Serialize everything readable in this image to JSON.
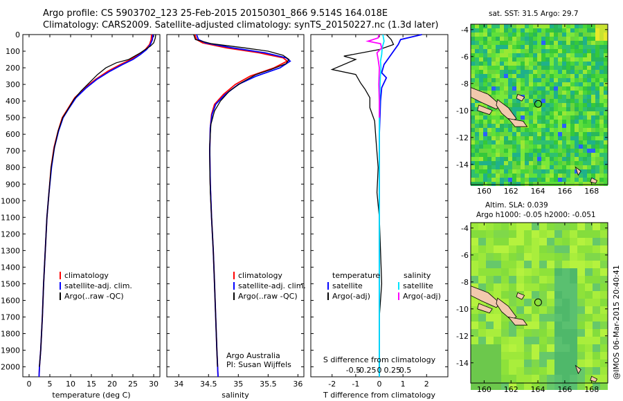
{
  "header": {
    "title1": "Argo profile: CS 5903702_123 25-Feb-2015 20150301_866 9.514S 164.018E",
    "title2": "Climatology: CARS2009. Satellite-adjusted climatology: synTS_20150227.nc (1.3d later)"
  },
  "side_titles": {
    "sst": "sat. SST: 31.5 Argo: 29.7",
    "sla1": "Altim. SLA: 0.039",
    "sla2": "Argo h1000: -0.05 h2000: -0.051"
  },
  "watermark": "@IMOS 06-Mar-2015 20:40:41",
  "colors": {
    "clim": "#ff0000",
    "sat": "#0000ff",
    "argo": "#000000",
    "salt_sat": "#00e5ff",
    "salt_argo": "#ff00ff"
  },
  "depth_axis": {
    "ticks": [
      0,
      100,
      200,
      300,
      400,
      500,
      600,
      700,
      800,
      900,
      1000,
      1100,
      1200,
      1300,
      1400,
      1500,
      1600,
      1700,
      1800,
      1900,
      2000
    ],
    "ylim": [
      0,
      2060
    ]
  },
  "chart_data": [
    {
      "type": "line",
      "name": "temperature",
      "xlabel": "temperature (deg C)",
      "xlim": [
        -1.5,
        31.5
      ],
      "xticks": [
        0,
        5,
        10,
        15,
        20,
        25,
        30
      ],
      "legend": [
        "climatology",
        "satellite-adj. clim.",
        "Argo(..raw -QC)"
      ],
      "series": [
        {
          "name": "climatology",
          "color": "clim",
          "points": [
            [
              29.5,
              0
            ],
            [
              29.4,
              30
            ],
            [
              29.0,
              60
            ],
            [
              28.0,
              90
            ],
            [
              26.5,
              120
            ],
            [
              24.5,
              150
            ],
            [
              22.0,
              180
            ],
            [
              19.0,
              220
            ],
            [
              16.0,
              270
            ],
            [
              13.5,
              320
            ],
            [
              11.0,
              380
            ],
            [
              9.5,
              440
            ],
            [
              8.0,
              500
            ],
            [
              7.0,
              580
            ],
            [
              6.0,
              680
            ],
            [
              5.3,
              800
            ],
            [
              4.8,
              950
            ],
            [
              4.3,
              1100
            ],
            [
              3.9,
              1300
            ],
            [
              3.5,
              1500
            ],
            [
              3.2,
              1700
            ],
            [
              2.8,
              1900
            ],
            [
              2.5,
              2000
            ],
            [
              2.4,
              2060
            ]
          ]
        },
        {
          "name": "satellite",
          "color": "sat",
          "points": [
            [
              29.8,
              0
            ],
            [
              29.7,
              30
            ],
            [
              29.2,
              60
            ],
            [
              28.3,
              90
            ],
            [
              26.8,
              120
            ],
            [
              25.0,
              150
            ],
            [
              22.5,
              180
            ],
            [
              19.5,
              220
            ],
            [
              16.3,
              270
            ],
            [
              13.8,
              320
            ],
            [
              11.3,
              380
            ],
            [
              9.7,
              440
            ],
            [
              8.2,
              500
            ],
            [
              7.1,
              580
            ],
            [
              6.1,
              680
            ],
            [
              5.4,
              800
            ],
            [
              4.8,
              950
            ],
            [
              4.3,
              1100
            ],
            [
              3.9,
              1300
            ],
            [
              3.5,
              1500
            ],
            [
              3.2,
              1700
            ],
            [
              2.8,
              1900
            ],
            [
              2.5,
              2000
            ],
            [
              2.4,
              2060
            ]
          ]
        },
        {
          "name": "argo",
          "color": "argo",
          "points": [
            [
              30.5,
              0
            ],
            [
              30.4,
              20
            ],
            [
              30.0,
              50
            ],
            [
              29.2,
              70
            ],
            [
              28.0,
              90
            ],
            [
              26.8,
              110
            ],
            [
              24.0,
              150
            ],
            [
              21.0,
              170
            ],
            [
              18.5,
              200
            ],
            [
              16.5,
              240
            ],
            [
              14.5,
              290
            ],
            [
              12.5,
              340
            ],
            [
              10.8,
              390
            ],
            [
              9.6,
              440
            ],
            [
              8.1,
              500
            ],
            [
              7.0,
              580
            ],
            [
              6.1,
              680
            ],
            [
              5.3,
              800
            ],
            [
              4.8,
              950
            ],
            [
              4.3,
              1100
            ],
            [
              3.9,
              1300
            ],
            [
              3.5,
              1500
            ],
            [
              3.2,
              1700
            ],
            [
              2.8,
              1900
            ],
            [
              2.5,
              2000
            ]
          ]
        }
      ]
    },
    {
      "type": "line",
      "name": "salinity",
      "xlabel": "salinity",
      "xlim": [
        33.8,
        36.1
      ],
      "xticks": [
        34,
        34.5,
        35,
        35.5,
        36
      ],
      "xticklabels": [
        "34",
        "34.5",
        "35",
        "35.5",
        "36"
      ],
      "legend": [
        "climatology",
        "satellite-adj. clim.",
        "Argo(..raw -QC)"
      ],
      "credit1": "Argo Australia",
      "credit2": "PI: Susan Wijffels",
      "series": [
        {
          "name": "climatology",
          "color": "clim",
          "points": [
            [
              34.27,
              0
            ],
            [
              34.3,
              30
            ],
            [
              34.4,
              50
            ],
            [
              34.8,
              80
            ],
            [
              35.35,
              110
            ],
            [
              35.75,
              140
            ],
            [
              35.82,
              160
            ],
            [
              35.6,
              200
            ],
            [
              35.2,
              250
            ],
            [
              34.95,
              300
            ],
            [
              34.75,
              360
            ],
            [
              34.6,
              420
            ],
            [
              34.55,
              480
            ],
            [
              34.53,
              560
            ],
            [
              34.52,
              700
            ],
            [
              34.53,
              900
            ],
            [
              34.55,
              1100
            ],
            [
              34.58,
              1300
            ],
            [
              34.6,
              1500
            ],
            [
              34.62,
              1700
            ],
            [
              34.64,
              1900
            ],
            [
              34.66,
              2060
            ]
          ]
        },
        {
          "name": "satellite",
          "color": "sat",
          "points": [
            [
              34.3,
              0
            ],
            [
              34.33,
              30
            ],
            [
              34.45,
              50
            ],
            [
              34.9,
              80
            ],
            [
              35.45,
              110
            ],
            [
              35.8,
              140
            ],
            [
              35.87,
              160
            ],
            [
              35.7,
              200
            ],
            [
              35.3,
              250
            ],
            [
              35.0,
              300
            ],
            [
              34.78,
              360
            ],
            [
              34.62,
              420
            ],
            [
              34.56,
              480
            ],
            [
              34.53,
              560
            ],
            [
              34.52,
              700
            ],
            [
              34.53,
              900
            ],
            [
              34.55,
              1100
            ],
            [
              34.58,
              1300
            ],
            [
              34.6,
              1500
            ],
            [
              34.62,
              1700
            ],
            [
              34.64,
              1900
            ],
            [
              34.66,
              2060
            ]
          ]
        },
        {
          "name": "argo",
          "color": "argo",
          "points": [
            [
              34.25,
              0
            ],
            [
              34.28,
              30
            ],
            [
              34.55,
              55
            ],
            [
              35.1,
              80
            ],
            [
              35.5,
              100
            ],
            [
              35.75,
              125
            ],
            [
              35.85,
              150
            ],
            [
              35.8,
              175
            ],
            [
              35.55,
              210
            ],
            [
              35.3,
              240
            ],
            [
              35.05,
              290
            ],
            [
              34.85,
              340
            ],
            [
              34.7,
              400
            ],
            [
              34.6,
              460
            ],
            [
              34.54,
              540
            ],
            [
              34.52,
              660
            ],
            [
              34.52,
              800
            ],
            [
              34.53,
              950
            ],
            [
              34.55,
              1100
            ],
            [
              34.58,
              1300
            ],
            [
              34.6,
              1500
            ],
            [
              34.62,
              1700
            ],
            [
              34.64,
              1900
            ],
            [
              34.65,
              2000
            ]
          ]
        }
      ]
    },
    {
      "type": "line",
      "name": "differences",
      "xlabel": "T difference from climatology",
      "xlim": [
        -2.9,
        2.9
      ],
      "xticks": [
        -2,
        -1,
        0,
        1,
        2
      ],
      "s_axis_label": "S difference from climatology",
      "s_ticks": [
        -0.5,
        -0.25,
        0,
        0.25,
        0.5
      ],
      "s_ticklabels": [
        "-0.5",
        "-0.25",
        "0",
        "0.25",
        "0.5"
      ],
      "legend_temperature": [
        "temperature",
        "satellite",
        "Argo(-adj)"
      ],
      "legend_salinity": [
        "salinity",
        "satellite",
        "Argo(-adj)"
      ],
      "series": [
        {
          "name": "T satellite",
          "color": "sat",
          "points": [
            [
              1.8,
              0
            ],
            [
              0.9,
              30
            ],
            [
              0.8,
              60
            ],
            [
              0.6,
              100
            ],
            [
              0.4,
              140
            ],
            [
              0.2,
              180
            ],
            [
              0.1,
              230
            ],
            [
              0.3,
              260
            ],
            [
              0.1,
              320
            ],
            [
              0.05,
              400
            ],
            [
              0.0,
              600
            ],
            [
              0.0,
              2060
            ]
          ]
        },
        {
          "name": "T argo",
          "color": "argo",
          "points": [
            [
              0.3,
              0
            ],
            [
              0.5,
              30
            ],
            [
              0.6,
              60
            ],
            [
              0.0,
              90
            ],
            [
              -1.5,
              130
            ],
            [
              -1.0,
              150
            ],
            [
              -2.0,
              210
            ],
            [
              -1.0,
              240
            ],
            [
              -0.8,
              290
            ],
            [
              -0.6,
              330
            ],
            [
              -0.4,
              380
            ],
            [
              -0.4,
              440
            ],
            [
              -0.2,
              520
            ],
            [
              -0.15,
              620
            ],
            [
              -0.05,
              800
            ],
            [
              -0.1,
              950
            ],
            [
              0.0,
              1100
            ],
            [
              0.05,
              1300
            ],
            [
              0.1,
              1500
            ],
            [
              0.0,
              1700
            ],
            [
              0.0,
              2000
            ]
          ]
        },
        {
          "name": "S satellite",
          "color": "salt_sat",
          "points": [
            [
              0.15,
              0
            ],
            [
              0.2,
              40
            ],
            [
              0.12,
              80
            ],
            [
              0.1,
              120
            ],
            [
              0.05,
              160
            ],
            [
              0.07,
              200
            ],
            [
              0.04,
              260
            ],
            [
              0.02,
              350
            ],
            [
              0.0,
              500
            ],
            [
              0.0,
              2060
            ]
          ]
        },
        {
          "name": "S argo",
          "color": "salt_argo",
          "points": [
            [
              -0.02,
              0
            ],
            [
              -0.05,
              20
            ],
            [
              -0.48,
              40
            ],
            [
              0.05,
              55
            ],
            [
              0.1,
              80
            ],
            [
              -0.1,
              110
            ],
            [
              -0.05,
              150
            ],
            [
              0.0,
              200
            ],
            [
              -0.02,
              300
            ],
            [
              0.0,
              400
            ],
            [
              0.0,
              500
            ]
          ]
        }
      ]
    },
    {
      "type": "heatmap",
      "name": "sst-map",
      "xticks": [
        160,
        162,
        164,
        166,
        168
      ],
      "yticks": [
        -4,
        -6,
        -8,
        -10,
        -12,
        -14
      ],
      "xlim": [
        159,
        169.2
      ],
      "ylim": [
        -15.5,
        -3.6
      ],
      "argo_position": [
        164.018,
        -9.514
      ]
    },
    {
      "type": "heatmap",
      "name": "sla-map",
      "xticks": [
        160,
        162,
        164,
        166,
        168
      ],
      "yticks": [
        -4,
        -6,
        -8,
        -10,
        -12,
        -14
      ],
      "xlim": [
        159,
        169.2
      ],
      "ylim": [
        -15.5,
        -3.6
      ],
      "argo_position": [
        164.018,
        -9.514
      ]
    }
  ]
}
